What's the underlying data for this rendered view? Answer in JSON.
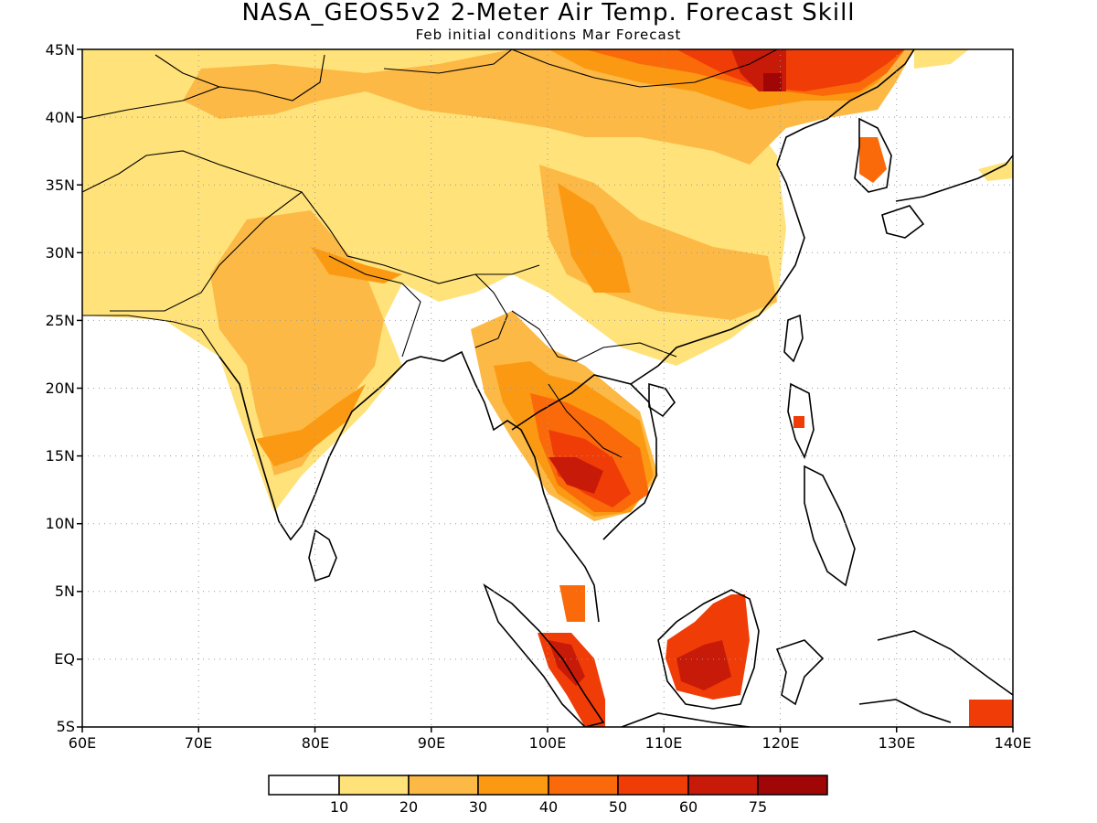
{
  "title": "NASA_GEOS5v2 2-Meter Air Temp. Forecast Skill",
  "subtitle": "Feb initial conditions  Mar Forecast",
  "map": {
    "region": "South and East Asia",
    "lon_range": [
      60,
      140
    ],
    "lat_range": [
      -5,
      45
    ],
    "lon_ticks": [
      "60E",
      "70E",
      "80E",
      "90E",
      "100E",
      "110E",
      "120E",
      "130E",
      "140E"
    ],
    "lat_ticks": [
      "45N",
      "40N",
      "35N",
      "30N",
      "25N",
      "20N",
      "15N",
      "10N",
      "5N",
      "EQ",
      "5S"
    ],
    "gridlines": "dotted"
  },
  "colorbar": {
    "colors": [
      "#ffffff",
      "#ffe27a",
      "#fcb945",
      "#fb9a12",
      "#fb6a0a",
      "#f03d07",
      "#c81a08",
      "#a00606"
    ],
    "labels": [
      "10",
      "20",
      "30",
      "40",
      "50",
      "60",
      "75"
    ]
  }
}
